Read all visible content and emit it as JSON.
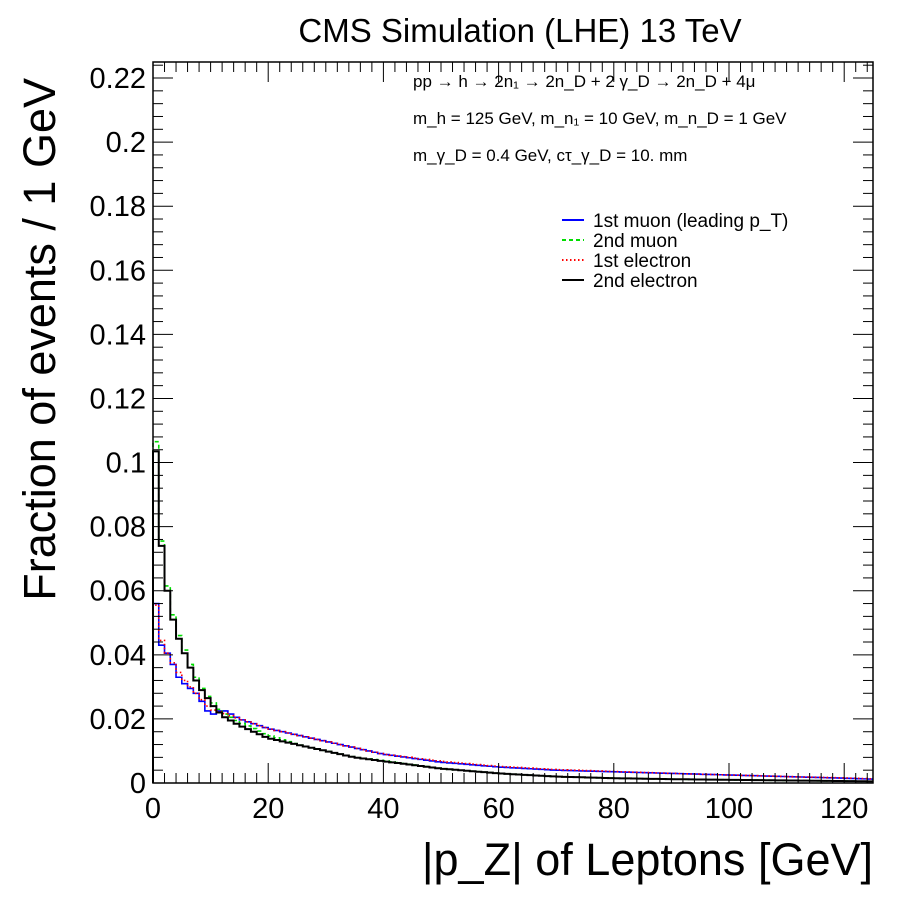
{
  "chart_data": {
    "type": "line",
    "title": "CMS Simulation (LHE) 13 TeV",
    "xlabel": "|p_Z| of Leptons [GeV]",
    "ylabel": "Fraction of events / 1 GeV",
    "xlim": [
      0,
      125
    ],
    "ylim": [
      0,
      0.225
    ],
    "x_ticks": [
      0,
      20,
      40,
      60,
      80,
      100,
      120
    ],
    "x_tick_labels": [
      "0",
      "20",
      "40",
      "60",
      "80",
      "100",
      "120"
    ],
    "y_ticks": [
      0,
      0.02,
      0.04,
      0.06,
      0.08,
      0.1,
      0.12,
      0.14,
      0.16,
      0.18,
      0.2,
      0.22
    ],
    "y_tick_labels": [
      "0",
      "0.02",
      "0.04",
      "0.06",
      "0.08",
      "0.1",
      "0.12",
      "0.14",
      "0.16",
      "0.18",
      "0.2",
      "0.22"
    ],
    "bin_width": 1,
    "annotations": {
      "line1": "pp → h → 2n₁ → 2n_D + 2 γ_D → 2n_D + 4μ",
      "line2": "m_h = 125 GeV, m_n₁ = 10 GeV, m_n_D = 1 GeV",
      "line3": "m_γ_D = 0.4 GeV, cτ_γ_D = 10. mm"
    },
    "legend_position": "top-right",
    "series": [
      {
        "name": "1st muon (leading p_T)",
        "color": "#0000ff",
        "style": "solid",
        "x": [
          0,
          1,
          2,
          3,
          4,
          5,
          6,
          7,
          8,
          9,
          10,
          12,
          15,
          20,
          25,
          30,
          35,
          40,
          50,
          60,
          70,
          80,
          90,
          100,
          110,
          120,
          125
        ],
        "y": [
          0.067,
          0.045,
          0.041,
          0.04,
          0.034,
          0.032,
          0.03,
          0.029,
          0.027,
          0.024,
          0.021,
          0.023,
          0.02,
          0.017,
          0.015,
          0.013,
          0.011,
          0.009,
          0.0065,
          0.005,
          0.004,
          0.0035,
          0.003,
          0.0025,
          0.002,
          0.0015,
          0.0012
        ]
      },
      {
        "name": "2nd muon",
        "color": "#00dd00",
        "style": "dashed",
        "x": [
          0,
          1,
          2,
          3,
          4,
          5,
          6,
          7,
          8,
          9,
          10,
          12,
          15,
          20,
          25,
          30,
          35,
          40,
          50,
          60,
          70,
          80,
          90,
          100,
          110,
          120,
          125
        ],
        "y": [
          0.128,
          0.085,
          0.066,
          0.057,
          0.048,
          0.044,
          0.039,
          0.035,
          0.031,
          0.028,
          0.026,
          0.022,
          0.019,
          0.015,
          0.012,
          0.01,
          0.008,
          0.007,
          0.0045,
          0.003,
          0.002,
          0.0015,
          0.0012,
          0.001,
          0.0008,
          0.0006,
          0.0005
        ]
      },
      {
        "name": "1st electron",
        "color": "#ff0000",
        "style": "dotted",
        "x": [
          0,
          1,
          2,
          3,
          4,
          5,
          6,
          7,
          8,
          9,
          10,
          12,
          15,
          20,
          25,
          30,
          35,
          40,
          50,
          60,
          70,
          80,
          90,
          100,
          110,
          120,
          125
        ],
        "y": [
          0.064,
          0.047,
          0.042,
          0.039,
          0.036,
          0.033,
          0.031,
          0.029,
          0.027,
          0.025,
          0.023,
          0.022,
          0.02,
          0.017,
          0.015,
          0.013,
          0.011,
          0.009,
          0.0068,
          0.0052,
          0.0042,
          0.0036,
          0.003,
          0.0025,
          0.002,
          0.0016,
          0.0013
        ]
      },
      {
        "name": "2nd electron",
        "color": "#000000",
        "style": "solid",
        "x": [
          0,
          1,
          2,
          3,
          4,
          5,
          6,
          7,
          8,
          9,
          10,
          12,
          15,
          20,
          25,
          30,
          35,
          40,
          50,
          60,
          70,
          80,
          90,
          100,
          110,
          120,
          125
        ],
        "y": [
          0.124,
          0.083,
          0.065,
          0.055,
          0.047,
          0.043,
          0.038,
          0.034,
          0.03,
          0.028,
          0.025,
          0.021,
          0.018,
          0.014,
          0.012,
          0.01,
          0.008,
          0.0068,
          0.0045,
          0.003,
          0.002,
          0.0015,
          0.0012,
          0.001,
          0.0008,
          0.0006,
          0.0005
        ]
      }
    ]
  }
}
